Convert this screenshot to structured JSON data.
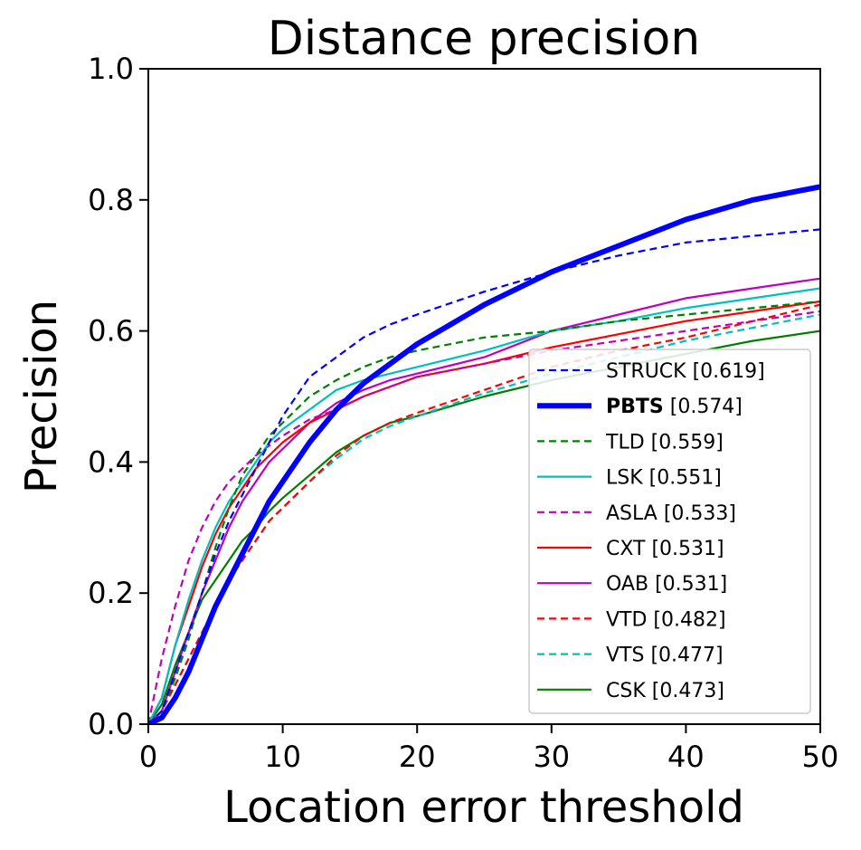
{
  "chart_data": {
    "type": "line",
    "title": "Distance precision",
    "xlabel": "Location error threshold",
    "ylabel": "Precision",
    "xlim": [
      0,
      50
    ],
    "ylim": [
      0,
      1
    ],
    "xticks": [
      0,
      10,
      20,
      30,
      40,
      50
    ],
    "xtick_labels": [
      "0",
      "10",
      "20",
      "30",
      "40",
      "50"
    ],
    "yticks": [
      0,
      0.2,
      0.4,
      0.6,
      0.8,
      1.0
    ],
    "ytick_labels": [
      "0.0",
      "0.2",
      "0.4",
      "0.6",
      "0.8",
      "1.0"
    ],
    "legend_position": "lower-right",
    "x": [
      0,
      1,
      2,
      3,
      4,
      5,
      6,
      7,
      8,
      9,
      10,
      12,
      14,
      16,
      18,
      20,
      25,
      30,
      35,
      40,
      45,
      50
    ],
    "series": [
      {
        "name": "STRUCK",
        "score": "[0.619]",
        "color": "#0000ff",
        "dash": "dashed",
        "bold": false,
        "values": [
          0,
          0.02,
          0.08,
          0.14,
          0.2,
          0.26,
          0.31,
          0.35,
          0.39,
          0.43,
          0.47,
          0.53,
          0.56,
          0.59,
          0.61,
          0.625,
          0.66,
          0.69,
          0.715,
          0.735,
          0.745,
          0.755
        ]
      },
      {
        "name": "PBTS",
        "score": "[0.574]",
        "color": "#0000ff",
        "dash": "solid",
        "bold": true,
        "values": [
          0,
          0.01,
          0.04,
          0.08,
          0.13,
          0.18,
          0.22,
          0.26,
          0.3,
          0.34,
          0.37,
          0.43,
          0.48,
          0.52,
          0.55,
          0.58,
          0.64,
          0.69,
          0.73,
          0.77,
          0.8,
          0.82
        ]
      },
      {
        "name": "TLD",
        "score": "[0.559]",
        "color": "#007f00",
        "dash": "dashed",
        "bold": false,
        "values": [
          0,
          0.02,
          0.07,
          0.13,
          0.2,
          0.27,
          0.33,
          0.38,
          0.41,
          0.44,
          0.46,
          0.5,
          0.525,
          0.545,
          0.56,
          0.57,
          0.59,
          0.6,
          0.615,
          0.625,
          0.635,
          0.645
        ]
      },
      {
        "name": "LSK",
        "score": "[0.551]",
        "color": "#00bfbf",
        "dash": "solid",
        "bold": false,
        "values": [
          0,
          0.04,
          0.12,
          0.19,
          0.25,
          0.3,
          0.34,
          0.37,
          0.4,
          0.43,
          0.45,
          0.48,
          0.51,
          0.525,
          0.535,
          0.545,
          0.57,
          0.6,
          0.615,
          0.635,
          0.65,
          0.665
        ]
      },
      {
        "name": "ASLA",
        "score": "[0.533]",
        "color": "#bf00bf",
        "dash": "dashed",
        "bold": false,
        "values": [
          0,
          0.1,
          0.18,
          0.25,
          0.3,
          0.34,
          0.37,
          0.39,
          0.41,
          0.425,
          0.44,
          0.465,
          0.48,
          0.5,
          0.515,
          0.53,
          0.55,
          0.57,
          0.585,
          0.6,
          0.615,
          0.63
        ]
      },
      {
        "name": "CXT",
        "score": "[0.531]",
        "color": "#ff0000",
        "dash": "solid",
        "bold": false,
        "values": [
          0,
          0.04,
          0.12,
          0.18,
          0.24,
          0.29,
          0.33,
          0.36,
          0.39,
          0.41,
          0.43,
          0.46,
          0.48,
          0.5,
          0.515,
          0.53,
          0.55,
          0.575,
          0.595,
          0.615,
          0.63,
          0.645
        ]
      },
      {
        "name": "OAB",
        "score": "[0.531]",
        "color": "#bf00bf",
        "dash": "solid",
        "bold": false,
        "values": [
          0,
          0.02,
          0.08,
          0.14,
          0.2,
          0.25,
          0.3,
          0.34,
          0.37,
          0.4,
          0.42,
          0.46,
          0.49,
          0.51,
          0.525,
          0.535,
          0.56,
          0.6,
          0.625,
          0.65,
          0.665,
          0.68
        ]
      },
      {
        "name": "VTD",
        "score": "[0.482]",
        "color": "#ff0000",
        "dash": "dashed",
        "bold": false,
        "values": [
          0,
          0.02,
          0.06,
          0.1,
          0.14,
          0.18,
          0.22,
          0.25,
          0.28,
          0.31,
          0.33,
          0.37,
          0.41,
          0.44,
          0.46,
          0.475,
          0.51,
          0.545,
          0.57,
          0.59,
          0.615,
          0.64
        ]
      },
      {
        "name": "VTS",
        "score": "[0.477]",
        "color": "#00bfbf",
        "dash": "dashed",
        "bold": false,
        "values": [
          0,
          0.02,
          0.06,
          0.1,
          0.14,
          0.18,
          0.22,
          0.25,
          0.28,
          0.31,
          0.33,
          0.37,
          0.405,
          0.435,
          0.455,
          0.47,
          0.505,
          0.535,
          0.56,
          0.585,
          0.605,
          0.625
        ]
      },
      {
        "name": "CSK",
        "score": "[0.473]",
        "color": "#007f00",
        "dash": "solid",
        "bold": false,
        "values": [
          0,
          0.03,
          0.09,
          0.14,
          0.19,
          0.22,
          0.25,
          0.28,
          0.3,
          0.325,
          0.345,
          0.38,
          0.415,
          0.44,
          0.46,
          0.47,
          0.5,
          0.525,
          0.545,
          0.565,
          0.585,
          0.6
        ]
      }
    ]
  }
}
